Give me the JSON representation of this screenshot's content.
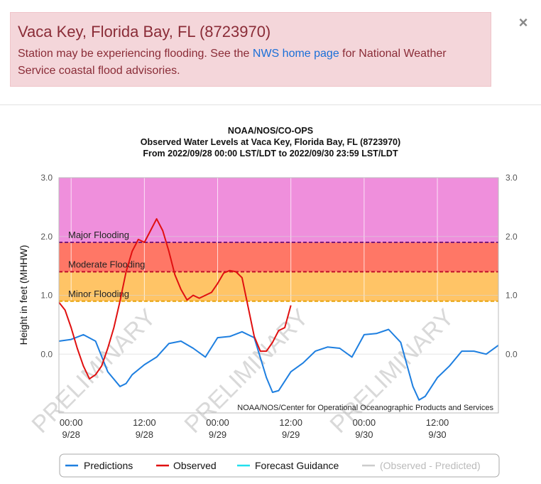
{
  "alert": {
    "title": "Vaca Key, Florida Bay, FL (8723970)",
    "message_before": "Station may be experiencing flooding. See the ",
    "link_text": "NWS home page",
    "message_after": " for National Weather Service coastal flood advisories."
  },
  "close_icon": "×",
  "colors": {
    "alert_bg": "#f4d6da",
    "major_zone": "#ef8fdc",
    "moderate_zone": "#ff7766",
    "minor_zone": "#ffc466",
    "predictions": "#1e7fe0",
    "observed": "#e01010",
    "forecast": "#22e0ee",
    "difference": "#cccccc"
  },
  "chart_data": {
    "type": "line",
    "title_lines": [
      "NOAA/NOS/CO-OPS",
      "Observed Water Levels at Vaca Key, Florida Bay, FL (8723970)",
      "From 2022/09/28 00:00 LST/LDT to 2022/09/30 23:59 LST/LDT"
    ],
    "ylabel": "Height in feet (MHHW)",
    "ylim": [
      -1.0,
      3.0
    ],
    "yticks": [
      "3.0",
      "2.0",
      "1.0",
      "0.0"
    ],
    "ytick_values": [
      3.0,
      2.0,
      1.0,
      0.0
    ],
    "xlim": [
      -2,
      70
    ],
    "xticks": [
      {
        "hour": 0,
        "time": "00:00",
        "date": "9/28"
      },
      {
        "hour": 12,
        "time": "12:00",
        "date": "9/28"
      },
      {
        "hour": 24,
        "time": "00:00",
        "date": "9/29"
      },
      {
        "hour": 36,
        "time": "12:00",
        "date": "9/29"
      },
      {
        "hour": 48,
        "time": "00:00",
        "date": "9/30"
      },
      {
        "hour": 60,
        "time": "12:00",
        "date": "9/30"
      }
    ],
    "thresholds": [
      {
        "name": "Major Flooding",
        "value": 1.9
      },
      {
        "name": "Moderate Flooding",
        "value": 1.4
      },
      {
        "name": "Minor Flooding",
        "value": 0.9
      }
    ],
    "watermark": "PRELIMINARY",
    "credit": "NOAA/NOS/Center for Operational Oceanographic Products and Services",
    "series": [
      {
        "name": "Predictions",
        "x": [
          -2,
          0,
          2,
          4,
          6,
          8,
          9,
          10,
          12,
          14,
          16,
          18,
          20,
          22,
          24,
          26,
          28,
          30,
          32,
          33,
          34,
          36,
          38,
          40,
          42,
          44,
          46,
          48,
          50,
          52,
          54,
          56,
          57,
          58,
          60,
          62,
          64,
          66,
          68,
          70
        ],
        "y": [
          0.22,
          0.25,
          0.33,
          0.22,
          -0.3,
          -0.55,
          -0.5,
          -0.35,
          -0.18,
          -0.05,
          0.18,
          0.22,
          0.1,
          -0.05,
          0.28,
          0.3,
          0.38,
          0.28,
          -0.4,
          -0.65,
          -0.62,
          -0.3,
          -0.15,
          0.05,
          0.12,
          0.1,
          -0.05,
          0.33,
          0.35,
          0.42,
          0.2,
          -0.55,
          -0.78,
          -0.72,
          -0.4,
          -0.2,
          0.05,
          0.05,
          0.0,
          0.15
        ]
      },
      {
        "name": "Observed",
        "x": [
          -2,
          -1,
          0,
          1,
          2,
          3,
          4,
          5,
          6,
          7,
          8,
          9,
          10,
          11,
          12,
          13,
          14,
          15,
          16,
          17,
          18,
          19,
          20,
          21,
          22,
          23,
          24,
          25,
          26,
          27,
          28,
          29,
          30,
          31,
          32,
          33,
          34,
          35,
          36
        ],
        "y": [
          0.88,
          0.75,
          0.45,
          0.1,
          -0.2,
          -0.42,
          -0.35,
          -0.2,
          0.1,
          0.45,
          0.9,
          1.4,
          1.75,
          1.95,
          1.9,
          2.1,
          2.3,
          2.1,
          1.75,
          1.35,
          1.1,
          0.92,
          1.0,
          0.95,
          1.0,
          1.05,
          1.2,
          1.38,
          1.42,
          1.4,
          1.3,
          0.8,
          0.3,
          0.05,
          0.05,
          0.2,
          0.4,
          0.45,
          0.83
        ]
      },
      {
        "name": "Forecast Guidance",
        "x": [],
        "y": []
      },
      {
        "name": "(Observed - Predicted)",
        "x": [],
        "y": []
      }
    ]
  }
}
